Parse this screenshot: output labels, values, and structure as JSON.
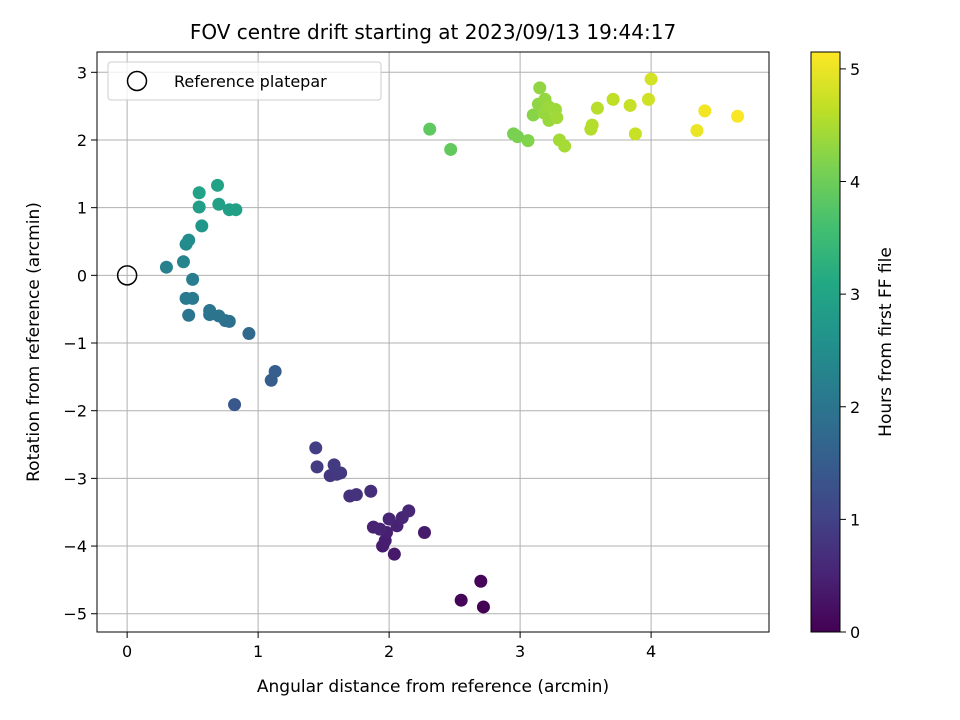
{
  "chart_data": {
    "type": "scatter",
    "title": "FOV centre drift starting at 2023/09/13 19:44:17",
    "xlabel": "Angular distance from reference (arcmin)",
    "ylabel": "Rotation from reference (arcmin)",
    "xlim": [
      -0.23,
      4.9
    ],
    "ylim": [
      -5.27,
      3.3
    ],
    "xticks": [
      0,
      1,
      2,
      3,
      4
    ],
    "yticks": [
      3,
      2,
      1,
      0,
      -1,
      -2,
      -3,
      -4,
      -5
    ],
    "grid": true,
    "legend": {
      "placement": "top-left",
      "entries": [
        "Reference platepar"
      ]
    },
    "reference_point": {
      "x": 0.0,
      "y": 0.0,
      "label": "Reference platepar"
    },
    "colorbar": {
      "label": "Hours from first FF file",
      "min": 0,
      "max": 5.15,
      "ticks": [
        0,
        1,
        2,
        3,
        4,
        5
      ],
      "colormap": "viridis"
    },
    "points": [
      {
        "x": 2.72,
        "y": -4.9,
        "h": 0.02
      },
      {
        "x": 2.55,
        "y": -4.8,
        "h": 0.05
      },
      {
        "x": 2.7,
        "y": -4.52,
        "h": 0.08
      },
      {
        "x": 2.04,
        "y": -4.12,
        "h": 0.35
      },
      {
        "x": 1.95,
        "y": -4.0,
        "h": 0.4
      },
      {
        "x": 1.97,
        "y": -3.92,
        "h": 0.42
      },
      {
        "x": 2.27,
        "y": -3.8,
        "h": 0.38
      },
      {
        "x": 1.98,
        "y": -3.8,
        "h": 0.45
      },
      {
        "x": 1.88,
        "y": -3.72,
        "h": 0.48
      },
      {
        "x": 2.06,
        "y": -3.7,
        "h": 0.5
      },
      {
        "x": 1.93,
        "y": -3.75,
        "h": 0.52
      },
      {
        "x": 2.0,
        "y": -3.6,
        "h": 0.55
      },
      {
        "x": 2.1,
        "y": -3.58,
        "h": 0.55
      },
      {
        "x": 2.15,
        "y": -3.48,
        "h": 0.58
      },
      {
        "x": 1.86,
        "y": -3.19,
        "h": 0.68
      },
      {
        "x": 1.7,
        "y": -3.26,
        "h": 0.72
      },
      {
        "x": 1.75,
        "y": -3.24,
        "h": 0.74
      },
      {
        "x": 1.55,
        "y": -2.96,
        "h": 0.82
      },
      {
        "x": 1.6,
        "y": -2.94,
        "h": 0.84
      },
      {
        "x": 1.63,
        "y": -2.92,
        "h": 0.85
      },
      {
        "x": 1.58,
        "y": -2.8,
        "h": 0.88
      },
      {
        "x": 1.45,
        "y": -2.83,
        "h": 0.9
      },
      {
        "x": 1.44,
        "y": -2.55,
        "h": 0.95
      },
      {
        "x": 0.82,
        "y": -1.91,
        "h": 1.4
      },
      {
        "x": 1.1,
        "y": -1.55,
        "h": 1.5
      },
      {
        "x": 1.13,
        "y": -1.42,
        "h": 1.55
      },
      {
        "x": 0.93,
        "y": -0.86,
        "h": 1.75
      },
      {
        "x": 0.78,
        "y": -0.68,
        "h": 1.9
      },
      {
        "x": 0.75,
        "y": -0.67,
        "h": 1.92
      },
      {
        "x": 0.7,
        "y": -0.6,
        "h": 1.95
      },
      {
        "x": 0.63,
        "y": -0.58,
        "h": 1.97
      },
      {
        "x": 0.63,
        "y": -0.52,
        "h": 2.0
      },
      {
        "x": 0.47,
        "y": -0.59,
        "h": 2.02
      },
      {
        "x": 0.5,
        "y": -0.34,
        "h": 2.08
      },
      {
        "x": 0.45,
        "y": -0.34,
        "h": 2.1
      },
      {
        "x": 0.5,
        "y": -0.06,
        "h": 2.18
      },
      {
        "x": 0.3,
        "y": 0.12,
        "h": 2.25
      },
      {
        "x": 0.43,
        "y": 0.2,
        "h": 2.3
      },
      {
        "x": 0.45,
        "y": 0.46,
        "h": 2.45
      },
      {
        "x": 0.47,
        "y": 0.52,
        "h": 2.5
      },
      {
        "x": 0.57,
        "y": 0.73,
        "h": 2.7
      },
      {
        "x": 0.55,
        "y": 1.01,
        "h": 2.85
      },
      {
        "x": 0.7,
        "y": 1.05,
        "h": 2.88
      },
      {
        "x": 0.78,
        "y": 0.97,
        "h": 2.9
      },
      {
        "x": 0.83,
        "y": 0.97,
        "h": 2.92
      },
      {
        "x": 0.55,
        "y": 1.22,
        "h": 2.95
      },
      {
        "x": 0.69,
        "y": 1.33,
        "h": 2.97
      },
      {
        "x": 2.31,
        "y": 2.16,
        "h": 3.85
      },
      {
        "x": 2.47,
        "y": 1.86,
        "h": 3.9
      },
      {
        "x": 2.95,
        "y": 2.09,
        "h": 4.1
      },
      {
        "x": 2.98,
        "y": 2.05,
        "h": 4.12
      },
      {
        "x": 3.06,
        "y": 1.99,
        "h": 4.18
      },
      {
        "x": 3.1,
        "y": 2.37,
        "h": 4.22
      },
      {
        "x": 3.14,
        "y": 2.53,
        "h": 4.28
      },
      {
        "x": 3.15,
        "y": 2.77,
        "h": 4.3
      },
      {
        "x": 3.19,
        "y": 2.6,
        "h": 4.32
      },
      {
        "x": 3.18,
        "y": 2.4,
        "h": 4.34
      },
      {
        "x": 3.22,
        "y": 2.29,
        "h": 4.36
      },
      {
        "x": 3.22,
        "y": 2.49,
        "h": 4.38
      },
      {
        "x": 3.27,
        "y": 2.45,
        "h": 4.4
      },
      {
        "x": 3.28,
        "y": 2.33,
        "h": 4.42
      },
      {
        "x": 3.3,
        "y": 2.0,
        "h": 4.44
      },
      {
        "x": 3.34,
        "y": 1.91,
        "h": 4.46
      },
      {
        "x": 3.54,
        "y": 2.16,
        "h": 4.55
      },
      {
        "x": 3.55,
        "y": 2.22,
        "h": 4.57
      },
      {
        "x": 3.59,
        "y": 2.47,
        "h": 4.6
      },
      {
        "x": 3.71,
        "y": 2.6,
        "h": 4.65
      },
      {
        "x": 3.84,
        "y": 2.51,
        "h": 4.7
      },
      {
        "x": 3.88,
        "y": 2.09,
        "h": 4.72
      },
      {
        "x": 3.98,
        "y": 2.6,
        "h": 4.78
      },
      {
        "x": 4.0,
        "y": 2.9,
        "h": 4.82
      },
      {
        "x": 4.35,
        "y": 2.14,
        "h": 5.0
      },
      {
        "x": 4.41,
        "y": 2.43,
        "h": 5.05
      },
      {
        "x": 4.66,
        "y": 2.35,
        "h": 5.12
      }
    ]
  }
}
